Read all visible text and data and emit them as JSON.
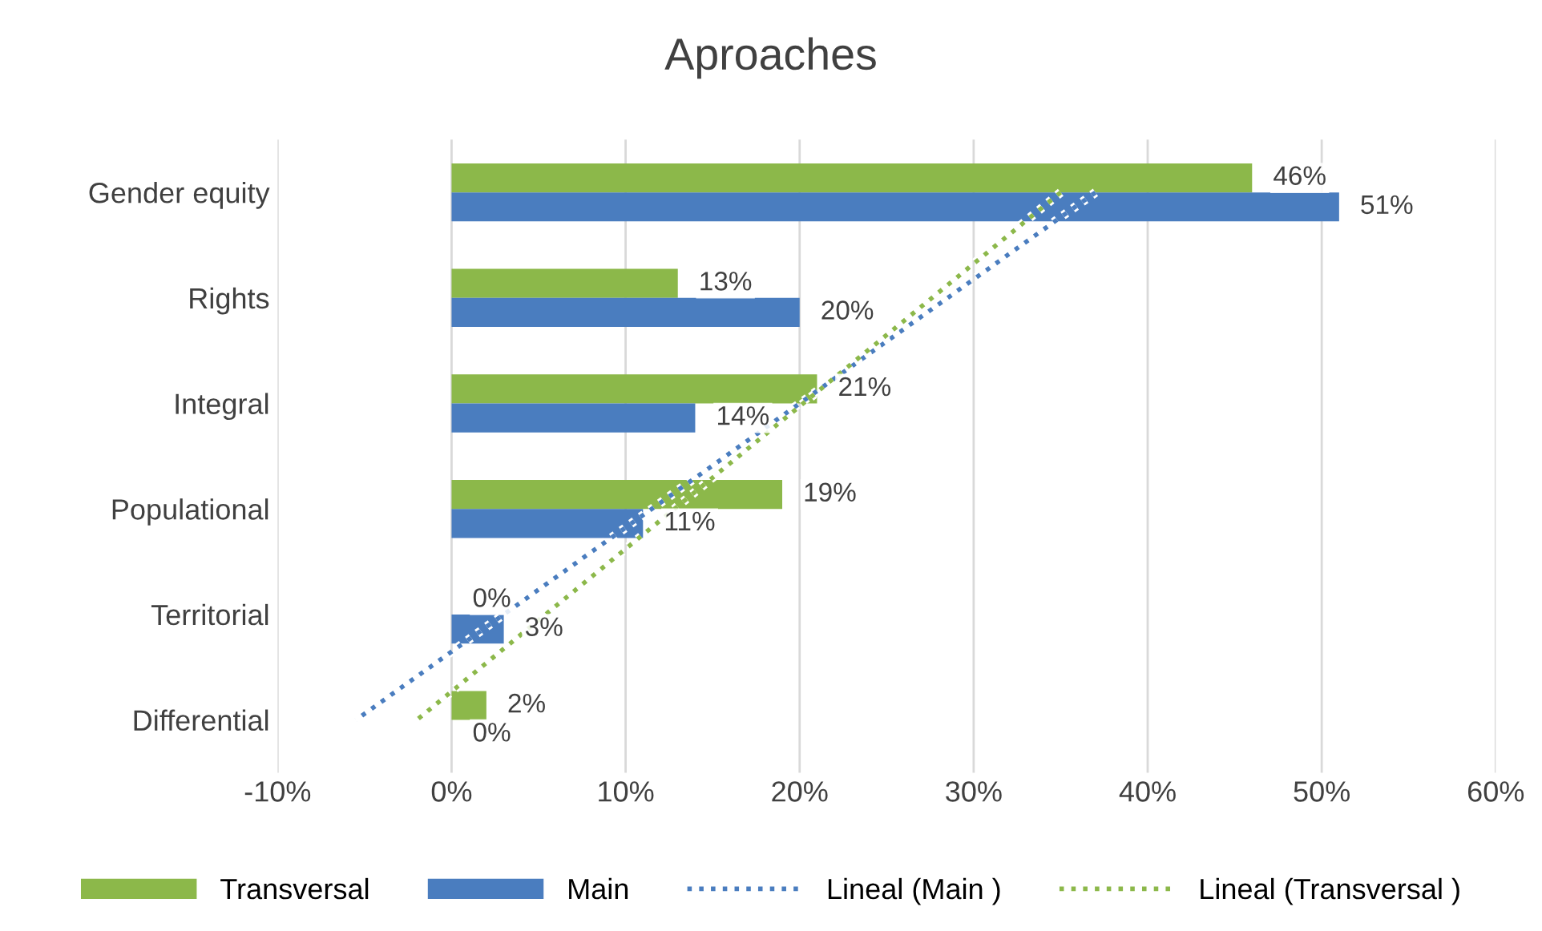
{
  "chart_data": {
    "type": "bar",
    "orientation": "horizontal",
    "title": "Aproaches",
    "categories": [
      "Gender equity",
      "Rights",
      "Integral",
      "Populational",
      "Territorial",
      "Differential"
    ],
    "series": [
      {
        "name": "Transversal",
        "color": "#8cb84a",
        "values": [
          46,
          13,
          21,
          19,
          0,
          2
        ],
        "value_labels": [
          "46%",
          "13%",
          "21%",
          "19%",
          "0%",
          "2%"
        ]
      },
      {
        "name": "Main",
        "color": "#4a7dbf",
        "values": [
          51,
          20,
          14,
          11,
          3,
          0
        ],
        "value_labels": [
          "51%",
          "20%",
          "14%",
          "11%",
          "3%",
          "0%"
        ]
      },
      {
        "name": "Lineal (Main )",
        "type": "line",
        "line_style": "dotted",
        "color": "#4a7dbf",
        "values": [
          37,
          28.5,
          20,
          11.5,
          3,
          -5.5
        ]
      },
      {
        "name": "Lineal (Transversal )",
        "type": "line",
        "line_style": "dotted",
        "color": "#8cb84a",
        "values": [
          35,
          27.6,
          20.2,
          12.8,
          5.4,
          -2
        ]
      }
    ],
    "xlim": [
      -10,
      60
    ],
    "xticks": [
      {
        "value": -10,
        "label": "-10%"
      },
      {
        "value": 0,
        "label": "0%"
      },
      {
        "value": 10,
        "label": "10%"
      },
      {
        "value": 20,
        "label": "20%"
      },
      {
        "value": 30,
        "label": "30%"
      },
      {
        "value": 40,
        "label": "40%"
      },
      {
        "value": 50,
        "label": "50%"
      },
      {
        "value": 60,
        "label": "60%"
      }
    ],
    "grid": "x",
    "legend": "bottom"
  }
}
